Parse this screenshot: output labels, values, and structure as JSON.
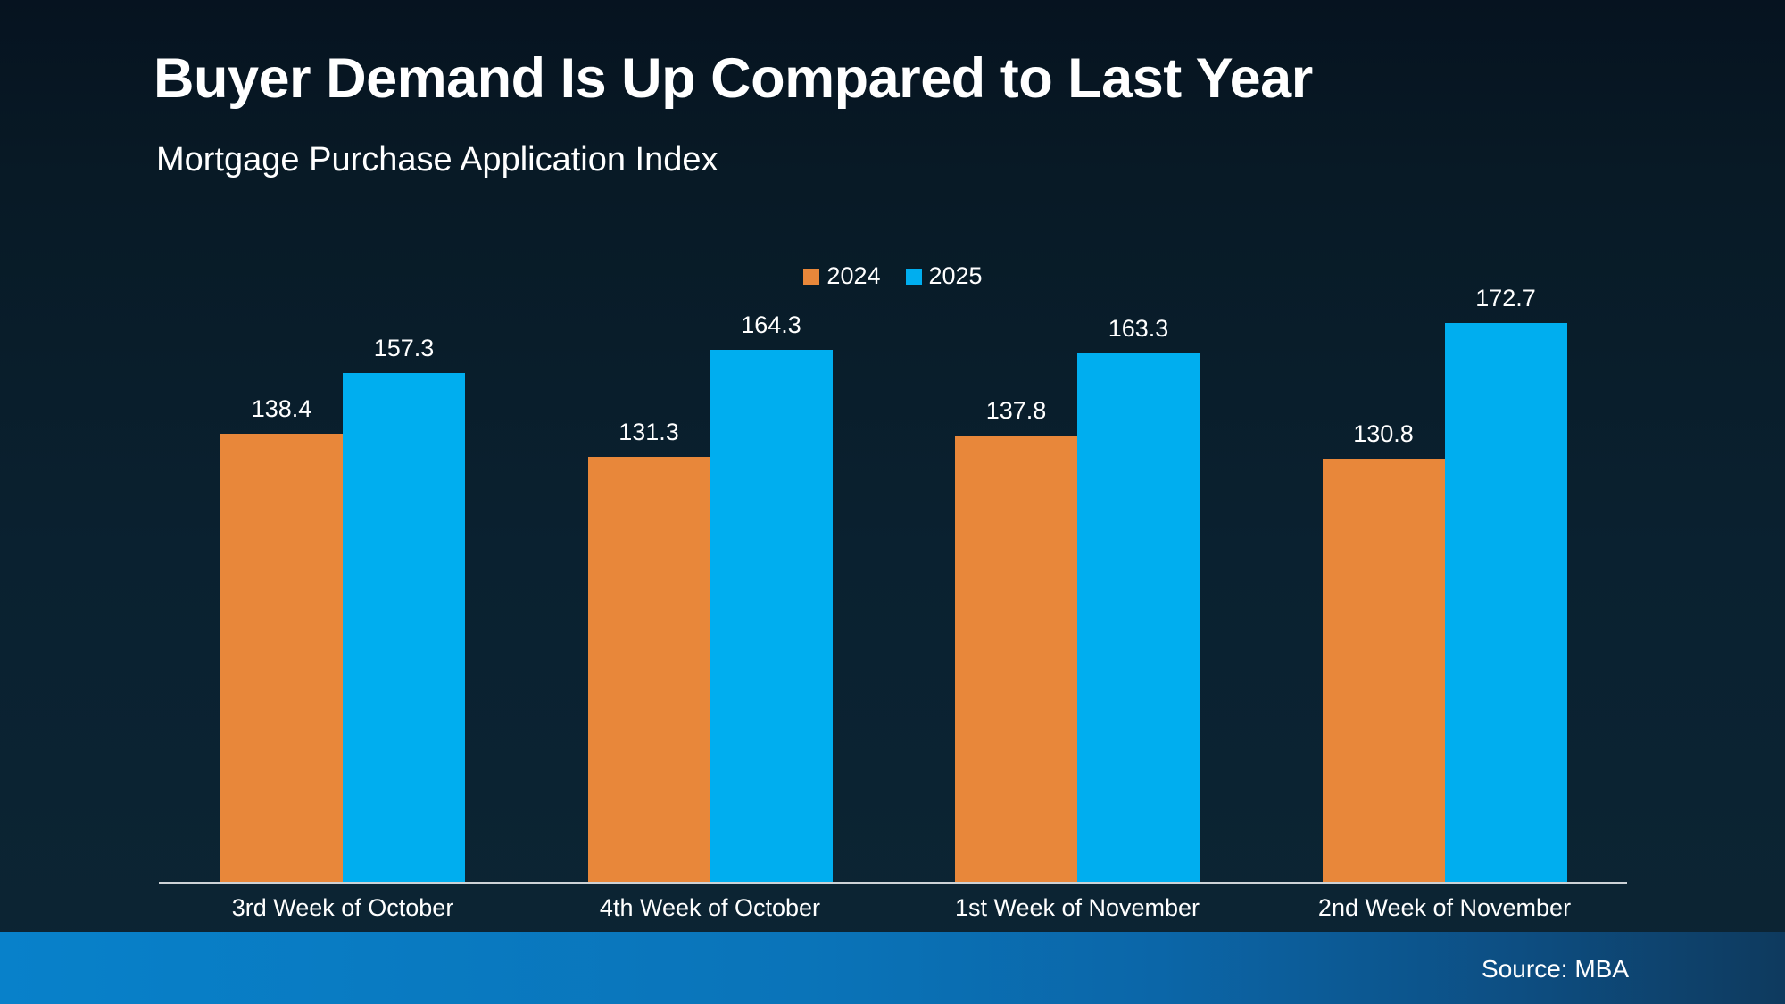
{
  "header": {
    "title": "Buyer Demand Is Up Compared to Last Year",
    "subtitle": "Mortgage Purchase Application Index"
  },
  "footer": {
    "source": "Source: MBA"
  },
  "colors": {
    "background_top": "#061320",
    "background_bottom": "#0c2534",
    "series_2024": "#E8873A",
    "series_2025": "#00AEEF",
    "axis_line": "#cdd2d6",
    "footer_band_left": "#0881CA",
    "footer_band_right": "#0E3A5E",
    "text": "#ffffff"
  },
  "chart_data": {
    "type": "bar",
    "title": "Buyer Demand Is Up Compared to Last Year",
    "subtitle": "Mortgage Purchase Application Index",
    "categories": [
      "3rd Week of October",
      "4th Week of October",
      "1st Week of November",
      "2nd Week of November"
    ],
    "series": [
      {
        "name": "2024",
        "color": "#E8873A",
        "values": [
          138.4,
          131.3,
          137.8,
          130.8
        ]
      },
      {
        "name": "2025",
        "color": "#00AEEF",
        "values": [
          157.3,
          164.3,
          163.3,
          172.7
        ]
      }
    ],
    "value_labels": true,
    "ylim": [
      0,
      180
    ],
    "grid": false,
    "legend_position": "top-center",
    "source": "Source: MBA"
  }
}
